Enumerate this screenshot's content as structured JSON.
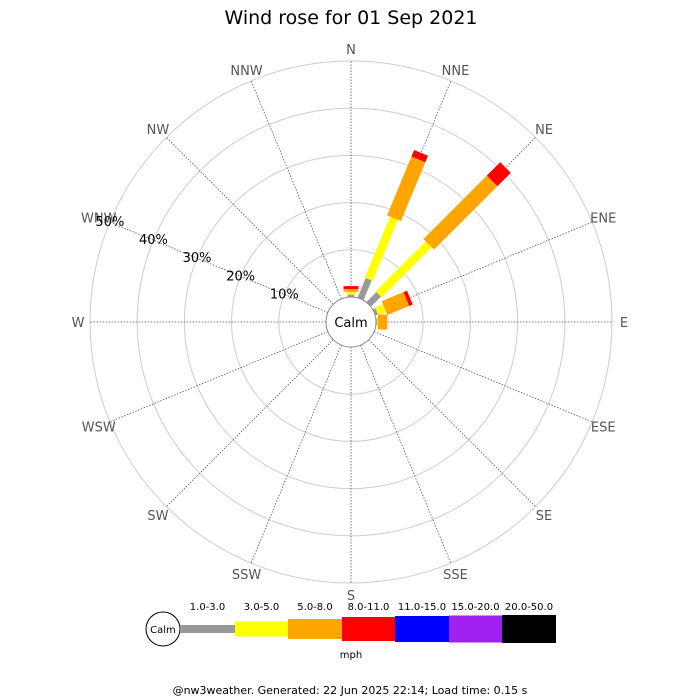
{
  "chart_data": {
    "type": "wind-rose",
    "title": "Wind rose for 01 Sep 2021",
    "directions": [
      "N",
      "NNE",
      "NE",
      "ENE",
      "E",
      "ESE",
      "SE",
      "SSE",
      "S",
      "SSW",
      "SW",
      "WSW",
      "W",
      "WNW",
      "NW",
      "NNW"
    ],
    "radial_ticks": [
      "10%",
      "20%",
      "30%",
      "40%",
      "50%"
    ],
    "radial_max": 50,
    "calm_label": "Calm",
    "speed_bins": [
      "1.0-3.0",
      "3.0-5.0",
      "5.0-8.0",
      "8.0-11.0",
      "11.0-15.0",
      "15.0-20.0",
      "20.0-50.0"
    ],
    "speed_unit": "mph",
    "bin_colors": [
      "#999999",
      "#ffff00",
      "#ffa500",
      "#ff0000",
      "#0000ff",
      "#a020f0",
      "#000000"
    ],
    "series": [
      {
        "direction": "N",
        "values": [
          0.5,
          0.6,
          0.6,
          0.6,
          0,
          0,
          0
        ]
      },
      {
        "direction": "NNE",
        "values": [
          4.5,
          14.0,
          13.5,
          1.5,
          0,
          0,
          0
        ]
      },
      {
        "direction": "NE",
        "values": [
          3.0,
          15.0,
          19.0,
          4.0,
          0,
          0,
          0
        ]
      },
      {
        "direction": "ENE",
        "values": [
          0.6,
          1.8,
          5.0,
          0.8,
          0,
          0,
          0
        ]
      },
      {
        "direction": "E",
        "values": [
          0.2,
          0.2,
          2.0,
          0,
          0,
          0,
          0
        ]
      },
      {
        "direction": "ESE",
        "values": [
          0,
          0,
          0,
          0,
          0,
          0,
          0
        ]
      },
      {
        "direction": "SE",
        "values": [
          0,
          0,
          0,
          0,
          0,
          0,
          0
        ]
      },
      {
        "direction": "SSE",
        "values": [
          0,
          0,
          0,
          0,
          0,
          0,
          0
        ]
      },
      {
        "direction": "S",
        "values": [
          0,
          0,
          0,
          0,
          0,
          0,
          0
        ]
      },
      {
        "direction": "SSW",
        "values": [
          0,
          0,
          0,
          0,
          0,
          0,
          0
        ]
      },
      {
        "direction": "SW",
        "values": [
          0,
          0,
          0,
          0,
          0,
          0,
          0
        ]
      },
      {
        "direction": "WSW",
        "values": [
          0,
          0,
          0,
          0,
          0,
          0,
          0
        ]
      },
      {
        "direction": "W",
        "values": [
          0,
          0,
          0,
          0,
          0,
          0,
          0
        ]
      },
      {
        "direction": "WNW",
        "values": [
          0,
          0,
          0,
          0,
          0,
          0,
          0
        ]
      },
      {
        "direction": "NW",
        "values": [
          0,
          0,
          0,
          0,
          0,
          0,
          0
        ]
      },
      {
        "direction": "NNW",
        "values": [
          0,
          0,
          0,
          0,
          0,
          0,
          0
        ]
      }
    ]
  },
  "footer": "@nw3weather. Generated: 22 Jun 2025 22:14; Load time: 0.15 s"
}
